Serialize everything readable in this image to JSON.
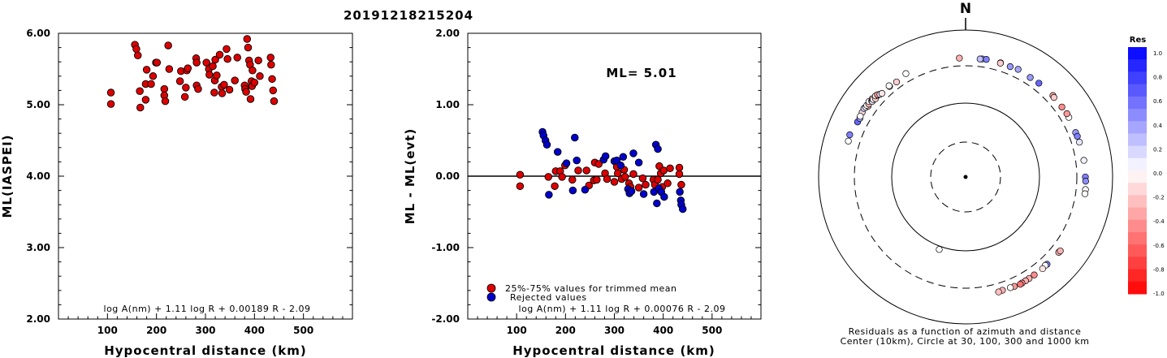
{
  "event_id": "20191218215204",
  "left_panel": {
    "ylabel": "ML(IASPEI)",
    "xlabel": "Hypocentral distance (km)",
    "formula": "log A(nm) + 1.11 log R + 0.00189 R - 2.09"
  },
  "middle_panel": {
    "ylabel": "ML - ML(evt)",
    "xlabel": "Hypocentral distance (km)",
    "ml_text": "ML= 5.01",
    "legend_trimmed": "25%-75% values for trimmed mean",
    "legend_rejected": "Rejected values",
    "formula": "log A(nm) + 1.11 log R + 0.00076 R - 2.09"
  },
  "right_panel": {
    "north": "N",
    "caption_line1": "Residuals as a function of azimuth and distance",
    "caption_line2": "Center (10km), Circle at 30, 100, 300 and 1000 km",
    "colorbar_title": "Res"
  },
  "colors": {
    "trimmed": "#dd0000",
    "rejected": "#0000cc",
    "outline": "#000000"
  },
  "chart_data": [
    {
      "type": "scatter",
      "name": "left",
      "xlabel": "Hypocentral distance (km)",
      "ylabel": "ML(IASPEI)",
      "xlim": [
        0,
        600
      ],
      "ylim": [
        2.0,
        6.0
      ],
      "xticks": [
        "100",
        "200",
        "300",
        "400",
        "500"
      ],
      "yticks": [
        "2.00",
        "3.00",
        "4.00",
        "5.00",
        "6.00"
      ],
      "points": [
        [
          107,
          5.17
        ],
        [
          107,
          5.01
        ],
        [
          156,
          5.84
        ],
        [
          159,
          5.78
        ],
        [
          162,
          5.69
        ],
        [
          166,
          5.19
        ],
        [
          167,
          4.96
        ],
        [
          178,
          5.07
        ],
        [
          178,
          5.29
        ],
        [
          180,
          5.49
        ],
        [
          189,
          5.29
        ],
        [
          193,
          5.4
        ],
        [
          199,
          5.59
        ],
        [
          201,
          5.59
        ],
        [
          216,
          5.22
        ],
        [
          216,
          5.13
        ],
        [
          218,
          5.05
        ],
        [
          224,
          5.83
        ],
        [
          226,
          5.5
        ],
        [
          248,
          5.33
        ],
        [
          250,
          5.47
        ],
        [
          258,
          5.11
        ],
        [
          260,
          5.24
        ],
        [
          262,
          5.48
        ],
        [
          264,
          5.51
        ],
        [
          281,
          5.65
        ],
        [
          282,
          5.59
        ],
        [
          282,
          5.27
        ],
        [
          285,
          5.22
        ],
        [
          302,
          5.59
        ],
        [
          307,
          5.5
        ],
        [
          308,
          5.42
        ],
        [
          315,
          5.54
        ],
        [
          318,
          5.17
        ],
        [
          319,
          5.34
        ],
        [
          320,
          5.63
        ],
        [
          323,
          5.41
        ],
        [
          329,
          5.7
        ],
        [
          333,
          5.25
        ],
        [
          334,
          5.16
        ],
        [
          338,
          5.28
        ],
        [
          343,
          5.78
        ],
        [
          345,
          5.64
        ],
        [
          349,
          5.21
        ],
        [
          360,
          5.34
        ],
        [
          365,
          5.66
        ],
        [
          380,
          5.27
        ],
        [
          381,
          5.22
        ],
        [
          383,
          5.18
        ],
        [
          385,
          5.92
        ],
        [
          387,
          5.8
        ],
        [
          389,
          5.62
        ],
        [
          391,
          5.56
        ],
        [
          392,
          5.08
        ],
        [
          394,
          5.33
        ],
        [
          395,
          5.26
        ],
        [
          396,
          5.48
        ],
        [
          400,
          5.31
        ],
        [
          408,
          5.62
        ],
        [
          411,
          5.4
        ],
        [
          433,
          5.66
        ],
        [
          434,
          5.56
        ],
        [
          436,
          5.36
        ],
        [
          438,
          5.2
        ],
        [
          440,
          5.05
        ]
      ]
    },
    {
      "type": "scatter",
      "name": "middle",
      "xlabel": "Hypocentral distance (km)",
      "ylabel": "ML - ML(evt)",
      "xlim": [
        0,
        600
      ],
      "ylim": [
        -2.0,
        2.0
      ],
      "xticks": [
        "100",
        "200",
        "300",
        "400",
        "500"
      ],
      "yticks": [
        "-2.00",
        "-1.00",
        "0.00",
        "1.00",
        "2.00"
      ],
      "reference_line": 0,
      "series": [
        {
          "name": "25%-75% values for trimmed mean",
          "color": "#dd0000",
          "points": [
            [
              107,
              0.02
            ],
            [
              107,
              -0.14
            ],
            [
              165,
              -0.01
            ],
            [
              178,
              -0.14
            ],
            [
              180,
              0.07
            ],
            [
              189,
              0.07
            ],
            [
              193,
              -0.01
            ],
            [
              199,
              0.15
            ],
            [
              214,
              -0.05
            ],
            [
              226,
              0.08
            ],
            [
              243,
              0.08
            ],
            [
              248,
              -0.13
            ],
            [
              258,
              -0.06
            ],
            [
              260,
              0.19
            ],
            [
              264,
              -0.05
            ],
            [
              268,
              0.17
            ],
            [
              281,
              0.04
            ],
            [
              285,
              -0.04
            ],
            [
              300,
              -0.08
            ],
            [
              305,
              0.13
            ],
            [
              307,
              0.04
            ],
            [
              315,
              -0.04
            ],
            [
              320,
              0.09
            ],
            [
              322,
              -0.01
            ],
            [
              330,
              -0.1
            ],
            [
              333,
              -0.15
            ],
            [
              339,
              0.03
            ],
            [
              350,
              -0.16
            ],
            [
              358,
              -0.03
            ],
            [
              364,
              -0.12
            ],
            [
              380,
              -0.05
            ],
            [
              383,
              -0.12
            ],
            [
              389,
              -0.05
            ],
            [
              392,
              0.14
            ],
            [
              395,
              0.04
            ],
            [
              398,
              -0.15
            ],
            [
              401,
              0.08
            ],
            [
              409,
              -0.1
            ],
            [
              414,
              0.11
            ],
            [
              433,
              0.12
            ],
            [
              433,
              0.03
            ],
            [
              437,
              -0.12
            ]
          ]
        },
        {
          "name": "Rejected values",
          "color": "#0000cc",
          "points": [
            [
              153,
              0.62
            ],
            [
              155,
              0.57
            ],
            [
              159,
              0.5
            ],
            [
              162,
              0.44
            ],
            [
              166,
              -0.26
            ],
            [
              184,
              0.34
            ],
            [
              202,
              0.18
            ],
            [
              215,
              -0.2
            ],
            [
              219,
              0.54
            ],
            [
              223,
              0.22
            ],
            [
              240,
              -0.19
            ],
            [
              278,
              0.23
            ],
            [
              282,
              0.28
            ],
            [
              300,
              0.21
            ],
            [
              305,
              0.22
            ],
            [
              313,
              0.15
            ],
            [
              318,
              0.27
            ],
            [
              328,
              -0.18
            ],
            [
              331,
              -0.24
            ],
            [
              335,
              -0.21
            ],
            [
              339,
              0.32
            ],
            [
              350,
              0.19
            ],
            [
              360,
              -0.25
            ],
            [
              381,
              -0.22
            ],
            [
              385,
              0.44
            ],
            [
              387,
              -0.38
            ],
            [
              389,
              0.38
            ],
            [
              391,
              -0.17
            ],
            [
              396,
              -0.22
            ],
            [
              402,
              -0.29
            ],
            [
              434,
              -0.22
            ],
            [
              436,
              -0.34
            ],
            [
              437,
              -0.4
            ],
            [
              440,
              -0.46
            ]
          ]
        }
      ]
    },
    {
      "type": "scatter",
      "name": "polar residual map",
      "center_km": 10,
      "circles_km": [
        30,
        100,
        300,
        1000
      ],
      "colorbar_ticks": [
        "1.0",
        "0.8",
        "0.6",
        "0.4",
        "0.2",
        "0.0",
        "-0.2",
        "-0.4",
        "-0.6",
        "-0.8",
        "-1.0"
      ],
      "points_az_dist_res": [
        [
          357,
          390,
          -0.3
        ],
        [
          8,
          392,
          0.35
        ],
        [
          10,
          395,
          0.5
        ],
        [
          22,
          390,
          0.4
        ],
        [
          26,
          400,
          0.35
        ],
        [
          17,
          395,
          -0.2
        ],
        [
          17,
          390,
          -0.2
        ],
        [
          7,
          388,
          0.25
        ],
        [
          33,
          385,
          0.4
        ],
        [
          38,
          390,
          0.6
        ],
        [
          47,
          395,
          -0.35
        ],
        [
          48,
          388,
          -0.2
        ],
        [
          54,
          390,
          -0.45
        ],
        [
          60,
          392,
          0.0
        ],
        [
          58,
          395,
          -0.4
        ],
        [
          68,
          385,
          0.4
        ],
        [
          70,
          388,
          0.5
        ],
        [
          73,
          390,
          0.1
        ],
        [
          82,
          395,
          0.05
        ],
        [
          90,
          400,
          0.5
        ],
        [
          92,
          405,
          0.45
        ],
        [
          96,
          410,
          0.0
        ],
        [
          98,
          410,
          0.0
        ],
        [
          129,
          400,
          -0.3
        ],
        [
          128,
          405,
          -0.3
        ],
        [
          137,
          395,
          0.5
        ],
        [
          138,
          390,
          0.0
        ],
        [
          140,
          400,
          -0.1
        ],
        [
          145,
          398,
          -0.45
        ],
        [
          148,
          400,
          -0.3
        ],
        [
          150,
          402,
          -0.3
        ],
        [
          152,
          405,
          -0.45
        ],
        [
          153,
          410,
          -0.55
        ],
        [
          156,
          400,
          -0.4
        ],
        [
          158,
          395,
          0.0
        ],
        [
          162,
          392,
          -0.3
        ],
        [
          164,
          398,
          -0.25
        ],
        [
          200,
          110,
          0.0
        ],
        [
          287,
          440,
          0.0
        ],
        [
          290,
          450,
          0.5
        ],
        [
          297,
          420,
          0.6
        ],
        [
          299,
          415,
          0.4
        ],
        [
          302,
          430,
          -0.15
        ],
        [
          300,
          425,
          0.0
        ],
        [
          304,
          440,
          0.2
        ],
        [
          305,
          425,
          0.0
        ],
        [
          306,
          410,
          -0.25
        ],
        [
          306,
          432,
          0.0
        ],
        [
          307,
          420,
          -0.3
        ],
        [
          308,
          440,
          0.0
        ],
        [
          309,
          415,
          -0.35
        ],
        [
          309,
          405,
          0.1
        ],
        [
          310,
          428,
          -0.4
        ],
        [
          310,
          410,
          0.0
        ],
        [
          311,
          395,
          -0.2
        ],
        [
          312,
          420,
          0.0
        ],
        [
          313,
          402,
          -0.1
        ],
        [
          313,
          410,
          -0.45
        ],
        [
          314,
          390,
          0.15
        ],
        [
          315,
          380,
          -0.1
        ],
        [
          320,
          380,
          -0.3
        ],
        [
          320,
          390,
          0.0
        ],
        [
          324,
          370,
          -0.2
        ],
        [
          330,
          395,
          0.0
        ]
      ]
    }
  ]
}
